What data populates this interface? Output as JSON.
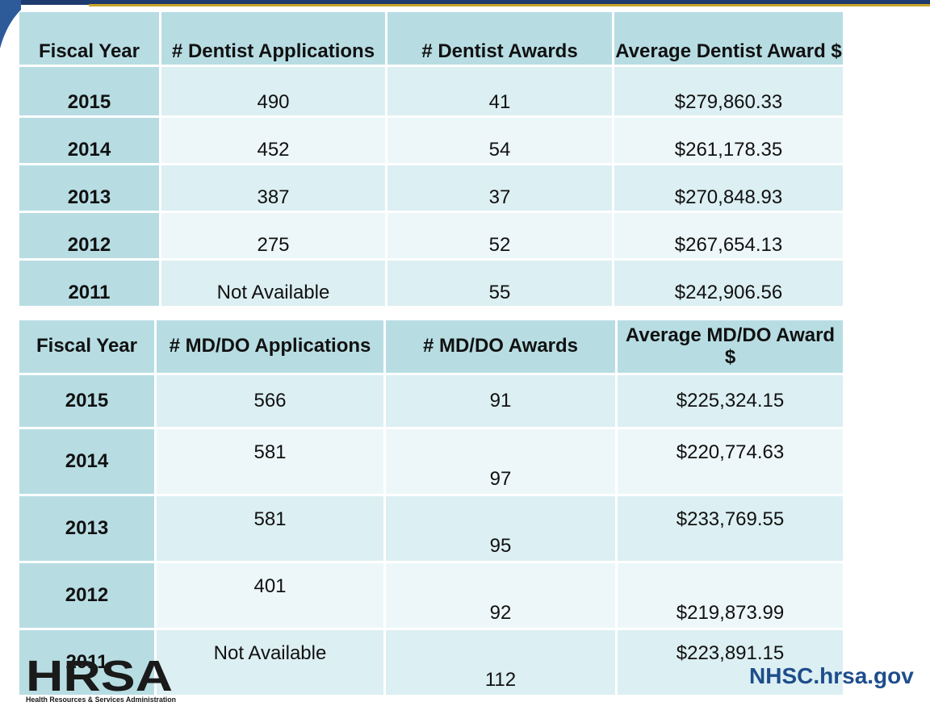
{
  "dentist_table": {
    "headers": [
      "Fiscal Year",
      "# Dentist Applications",
      "# Dentist Awards",
      "Average Dentist Award $"
    ],
    "rows": [
      {
        "year": "2015",
        "applications": "490",
        "awards": "41",
        "average": "$279,860.33"
      },
      {
        "year": "2014",
        "applications": "452",
        "awards": "54",
        "average": "$261,178.35"
      },
      {
        "year": "2013",
        "applications": "387",
        "awards": "37",
        "average": "$270,848.93"
      },
      {
        "year": "2012",
        "applications": "275",
        "awards": "52",
        "average": "$267,654.13"
      },
      {
        "year": "2011",
        "applications": "Not Available",
        "awards": "55",
        "average": "$242,906.56"
      }
    ]
  },
  "mddo_table": {
    "headers": [
      "Fiscal Year",
      "# MD/DO Applications",
      "# MD/DO Awards",
      "Average MD/DO Award $"
    ],
    "rows": [
      {
        "year": "2015",
        "applications": "566",
        "awards": "91",
        "average": "$225,324.15"
      },
      {
        "year": "2014",
        "applications": "581",
        "awards": "97",
        "average": "$220,774.63"
      },
      {
        "year": "2013",
        "applications": "581",
        "awards": "95",
        "average": "$233,769.55"
      },
      {
        "year": "2012",
        "applications": "401",
        "awards": "92",
        "average": "$219,873.99"
      },
      {
        "year": "2011",
        "applications": "Not Available",
        "awards": "112",
        "average": "$223,891.15"
      }
    ]
  },
  "footer": {
    "logo_text": "HRSA",
    "logo_subtext": "Health Resources & Services Administration",
    "site": "NHSC.hrsa.gov"
  },
  "colors": {
    "header_cell": "#b7dde3",
    "row_light": "#edf7f9",
    "row_mid": "#dceff2",
    "navy": "#1f3a6e",
    "gold": "#c9a227",
    "site_text": "#1e4d8c"
  }
}
